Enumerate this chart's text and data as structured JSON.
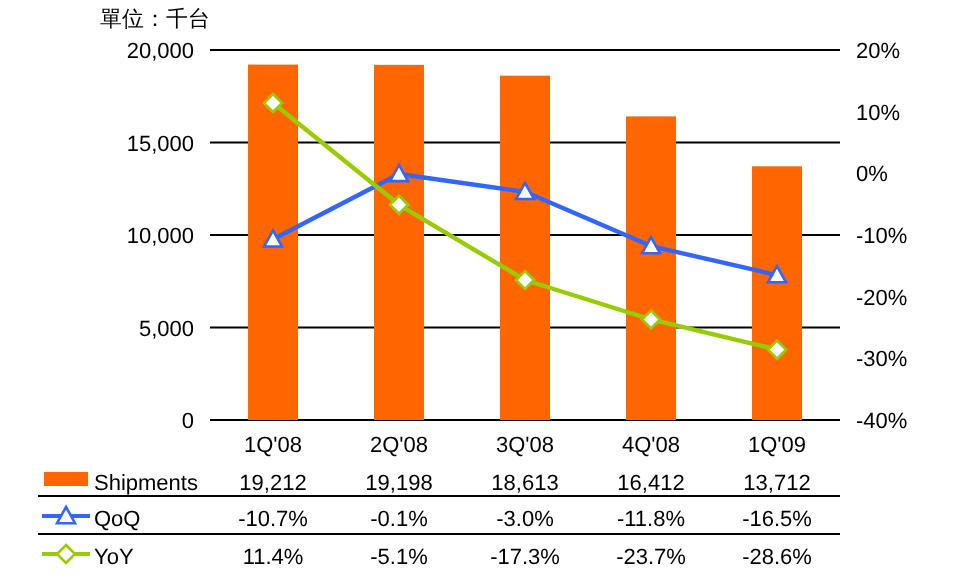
{
  "chart_data": {
    "type": "bar",
    "ylabel": "單位：千台",
    "categories": [
      "1Q'08",
      "2Q'08",
      "3Q'08",
      "4Q'08",
      "1Q'09"
    ],
    "series": [
      {
        "name": "Shipments",
        "color": "#ff6600",
        "values": [
          19212,
          19198,
          18613,
          16412,
          13712
        ],
        "value_labels": [
          "19,212",
          "19,198",
          "18,613",
          "16,412",
          "13,712"
        ]
      },
      {
        "name": "QoQ",
        "type": "line",
        "axis": "y2",
        "marker": "triangle",
        "color": "#3366ff",
        "values": [
          -10.7,
          -0.1,
          -3.0,
          -11.8,
          -16.5
        ],
        "value_labels": [
          "-10.7%",
          "-0.1%",
          "-3.0%",
          "-11.8%",
          "-16.5%"
        ]
      },
      {
        "name": "YoY",
        "type": "line",
        "axis": "y2",
        "marker": "diamond",
        "color": "#99cc00",
        "values": [
          11.4,
          -5.1,
          -17.3,
          -23.7,
          -28.6
        ],
        "value_labels": [
          "11.4%",
          "-5.1%",
          "-17.3%",
          "-23.7%",
          "-28.6%"
        ]
      }
    ],
    "ylim": [
      0,
      20000
    ],
    "yticks": [
      {
        "value": 0,
        "label": "0"
      },
      {
        "value": 5000,
        "label": "5,000"
      },
      {
        "value": 10000,
        "label": "10,000"
      },
      {
        "value": 15000,
        "label": "15,000"
      },
      {
        "value": 20000,
        "label": "20,000"
      }
    ],
    "y2lim": [
      -40,
      20
    ],
    "y2ticks": [
      {
        "value": -40,
        "label": "-40%"
      },
      {
        "value": -30,
        "label": "-30%"
      },
      {
        "value": -20,
        "label": "-20%"
      },
      {
        "value": -10,
        "label": "-10%"
      },
      {
        "value": 0,
        "label": "0%"
      },
      {
        "value": 10,
        "label": "10%"
      },
      {
        "value": 20,
        "label": "20%"
      }
    ],
    "grid": "y",
    "legend": "bottom"
  }
}
